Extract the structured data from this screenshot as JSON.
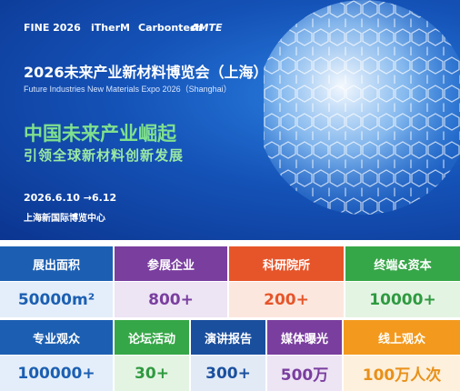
{
  "header": {
    "logos": [
      "FINE 2026",
      "iTherM",
      "Carbontech",
      "AMTE"
    ],
    "title": "2026未来产业新材料博览会（上海）",
    "subtitle": "Future Industries New Materials Expo 2026（Shanghai）",
    "slogan": [
      "中国未来产业崛起",
      "引领全球新材料创新发展"
    ],
    "date": "2026.6.10 →6.12",
    "venue": "上海新国际博览中心"
  },
  "stats": {
    "rows": [
      [
        {
          "label": "展出面积",
          "value": "50000m²"
        },
        {
          "label": "参展企业",
          "value": "800+"
        },
        {
          "label": "科研院所",
          "value": "200+"
        },
        {
          "label": "终端&资本",
          "value": "10000+"
        }
      ],
      [
        {
          "label": "专业观众",
          "value": "100000+"
        },
        {
          "label": "论坛活动",
          "value": "30+"
        },
        {
          "label": "演讲报告",
          "value": "300+"
        },
        {
          "label": "媒体曝光",
          "value": "500万"
        },
        {
          "label": "线上观众",
          "value": "100万人次"
        }
      ]
    ]
  }
}
